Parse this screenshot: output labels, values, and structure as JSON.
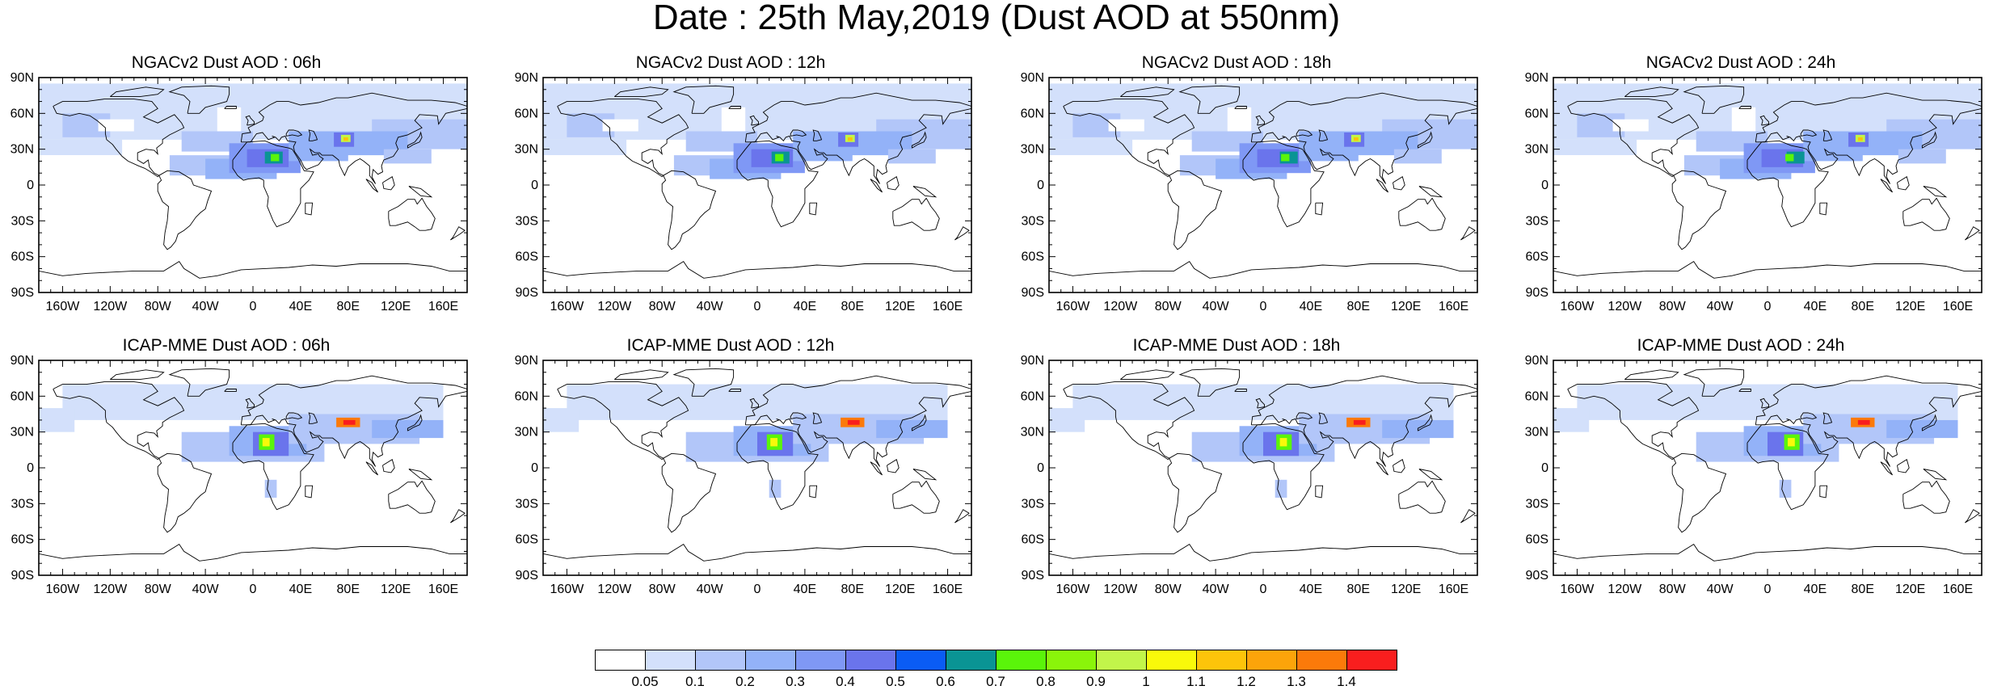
{
  "title": "Date : 25th May,2019 (Dust AOD at 550nm)",
  "lat_ticks": [
    "90N",
    "60N",
    "30N",
    "0",
    "30S",
    "60S",
    "90S"
  ],
  "lon_ticks": [
    "160W",
    "120W",
    "80W",
    "40W",
    "0",
    "40E",
    "80E",
    "120E",
    "160E"
  ],
  "panels": [
    {
      "label": "NGACv2 Dust AOD : 06h",
      "model": "NGACv2",
      "lead_hour": "06h"
    },
    {
      "label": "NGACv2 Dust AOD : 12h",
      "model": "NGACv2",
      "lead_hour": "12h"
    },
    {
      "label": "NGACv2 Dust AOD : 18h",
      "model": "NGACv2",
      "lead_hour": "18h"
    },
    {
      "label": "NGACv2 Dust AOD : 24h",
      "model": "NGACv2",
      "lead_hour": "24h"
    },
    {
      "label": "ICAP-MME Dust AOD : 06h",
      "model": "ICAP-MME",
      "lead_hour": "06h"
    },
    {
      "label": "ICAP-MME Dust AOD : 12h",
      "model": "ICAP-MME",
      "lead_hour": "12h"
    },
    {
      "label": "ICAP-MME Dust AOD : 18h",
      "model": "ICAP-MME",
      "lead_hour": "18h"
    },
    {
      "label": "ICAP-MME Dust AOD : 24h",
      "model": "ICAP-MME",
      "lead_hour": "24h"
    }
  ],
  "colorbar": {
    "labels": [
      "0.05",
      "0.1",
      "0.2",
      "0.3",
      "0.4",
      "0.5",
      "0.6",
      "0.7",
      "0.8",
      "0.9",
      "1",
      "1.1",
      "1.2",
      "1.3",
      "1.4"
    ],
    "colors": [
      "#ffffff",
      "#d3e0fb",
      "#b2c6f9",
      "#93b2f8",
      "#7f98f5",
      "#6a74ec",
      "#0a5cf5",
      "#0a9494",
      "#5af50a",
      "#8af50a",
      "#c2f54a",
      "#f9f90a",
      "#fdc40a",
      "#fca40a",
      "#fb7a0a",
      "#f91e1e"
    ]
  }
}
